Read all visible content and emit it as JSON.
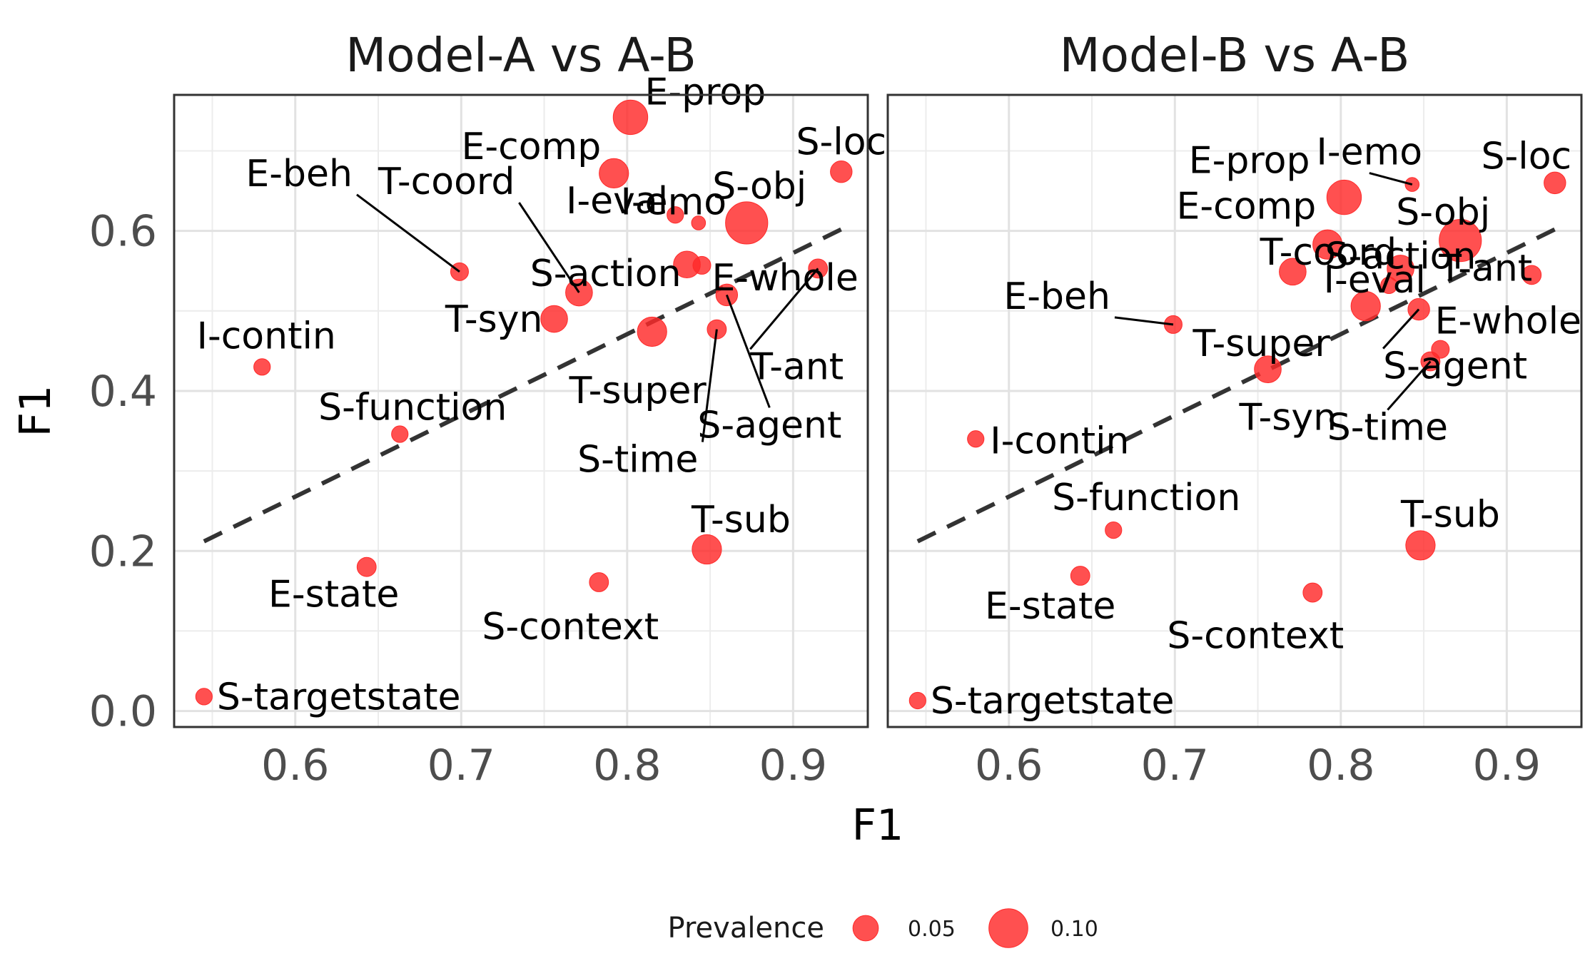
{
  "chart_data": {
    "type": "scatter",
    "x_axis_label": "F1",
    "y_axis_label": "F1",
    "xlim": [
      0.527,
      0.945
    ],
    "ylim": [
      -0.02,
      0.77
    ],
    "x_ticks": [
      0.6,
      0.7,
      0.8,
      0.9
    ],
    "x_tick_labels": [
      "0.6",
      "0.7",
      "0.8",
      "0.9"
    ],
    "y_ticks": [
      0.0,
      0.2,
      0.4,
      0.6
    ],
    "y_tick_labels": [
      "0.0",
      "0.2",
      "0.4",
      "0.6"
    ],
    "grid": true,
    "point_color": "#ff2a2a",
    "reference_line": "y = x (dashed)",
    "legend": {
      "title": "Prevalence",
      "position": "bottom",
      "entries": [
        {
          "label": "0.05",
          "value": 0.05
        },
        {
          "label": "0.10",
          "value": 0.1
        }
      ]
    },
    "panels": [
      {
        "title": "Model-A vs A-B",
        "points": [
          {
            "label": "E-prop",
            "x": 0.802,
            "y": 0.742,
            "prevalence": 0.09
          },
          {
            "label": "E-comp",
            "x": 0.792,
            "y": 0.672,
            "prevalence": 0.07
          },
          {
            "label": "S-loc",
            "x": 0.929,
            "y": 0.674,
            "prevalence": 0.04
          },
          {
            "label": "I-eval",
            "x": 0.829,
            "y": 0.62,
            "prevalence": 0.02
          },
          {
            "label": "S-obj",
            "x": 0.872,
            "y": 0.61,
            "prevalence": 0.12
          },
          {
            "label": "E-beh",
            "x": 0.699,
            "y": 0.549,
            "prevalence": 0.025
          },
          {
            "label": "T-coord",
            "x": 0.771,
            "y": 0.523,
            "prevalence": 0.06
          },
          {
            "label": "I-emo",
            "x": 0.843,
            "y": 0.61,
            "prevalence": 0.01
          },
          {
            "label": "S-action",
            "x": 0.836,
            "y": 0.558,
            "prevalence": 0.06
          },
          {
            "label": "E-whole",
            "x": 0.845,
            "y": 0.557,
            "prevalence": 0.025
          },
          {
            "label": "T-ant",
            "x": 0.915,
            "y": 0.553,
            "prevalence": 0.03
          },
          {
            "label": "S-agent",
            "x": 0.86,
            "y": 0.52,
            "prevalence": 0.04
          },
          {
            "label": "T-syn",
            "x": 0.756,
            "y": 0.49,
            "prevalence": 0.06
          },
          {
            "label": "T-super",
            "x": 0.815,
            "y": 0.474,
            "prevalence": 0.07
          },
          {
            "label": "S-time",
            "x": 0.854,
            "y": 0.477,
            "prevalence": 0.03
          },
          {
            "label": "I-contin",
            "x": 0.58,
            "y": 0.43,
            "prevalence": 0.02
          },
          {
            "label": "S-function",
            "x": 0.663,
            "y": 0.346,
            "prevalence": 0.02
          },
          {
            "label": "T-sub",
            "x": 0.848,
            "y": 0.202,
            "prevalence": 0.07
          },
          {
            "label": "E-state",
            "x": 0.643,
            "y": 0.18,
            "prevalence": 0.03
          },
          {
            "label": "S-context",
            "x": 0.783,
            "y": 0.161,
            "prevalence": 0.03
          },
          {
            "label": "S-targetstate",
            "x": 0.545,
            "y": 0.018,
            "prevalence": 0.02
          }
        ]
      },
      {
        "title": "Model-B vs A-B",
        "points": [
          {
            "label": "E-prop",
            "x": 0.802,
            "y": 0.642,
            "prevalence": 0.09
          },
          {
            "label": "I-emo",
            "x": 0.843,
            "y": 0.658,
            "prevalence": 0.01
          },
          {
            "label": "S-loc",
            "x": 0.929,
            "y": 0.66,
            "prevalence": 0.04
          },
          {
            "label": "S-obj",
            "x": 0.872,
            "y": 0.588,
            "prevalence": 0.12
          },
          {
            "label": "E-comp",
            "x": 0.792,
            "y": 0.583,
            "prevalence": 0.07
          },
          {
            "label": "I-eval",
            "x": 0.829,
            "y": 0.532,
            "prevalence": 0.02
          },
          {
            "label": "T-ant",
            "x": 0.915,
            "y": 0.545,
            "prevalence": 0.03
          },
          {
            "label": "T-coord",
            "x": 0.771,
            "y": 0.549,
            "prevalence": 0.06
          },
          {
            "label": "S-action",
            "x": 0.836,
            "y": 0.553,
            "prevalence": 0.06
          },
          {
            "label": "E-beh",
            "x": 0.699,
            "y": 0.483,
            "prevalence": 0.025
          },
          {
            "label": "T-super",
            "x": 0.815,
            "y": 0.506,
            "prevalence": 0.07
          },
          {
            "label": "S-agent",
            "x": 0.847,
            "y": 0.502,
            "prevalence": 0.04
          },
          {
            "label": "E-whole",
            "x": 0.86,
            "y": 0.452,
            "prevalence": 0.025
          },
          {
            "label": "S-time",
            "x": 0.854,
            "y": 0.437,
            "prevalence": 0.03
          },
          {
            "label": "T-syn",
            "x": 0.756,
            "y": 0.427,
            "prevalence": 0.06
          },
          {
            "label": "I-contin",
            "x": 0.58,
            "y": 0.34,
            "prevalence": 0.02
          },
          {
            "label": "S-function",
            "x": 0.663,
            "y": 0.226,
            "prevalence": 0.02
          },
          {
            "label": "T-sub",
            "x": 0.848,
            "y": 0.207,
            "prevalence": 0.07
          },
          {
            "label": "E-state",
            "x": 0.643,
            "y": 0.169,
            "prevalence": 0.03
          },
          {
            "label": "S-context",
            "x": 0.783,
            "y": 0.148,
            "prevalence": 0.03
          },
          {
            "label": "S-targetstate",
            "x": 0.545,
            "y": 0.013,
            "prevalence": 0.02
          }
        ]
      }
    ]
  }
}
